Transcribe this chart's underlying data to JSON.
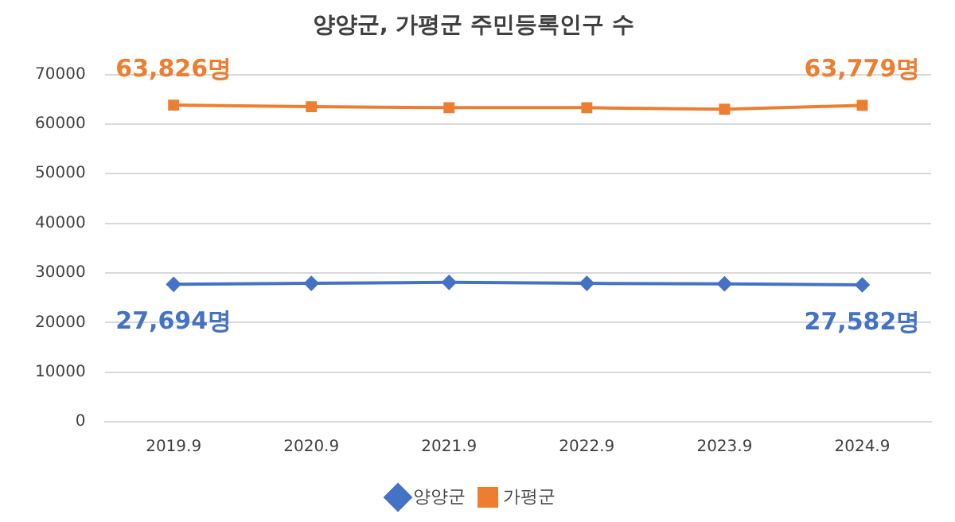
{
  "chart_data": {
    "type": "line",
    "title": "양양군, 가평군 주민등록인구 수",
    "categories": [
      "2019.9",
      "2020.9",
      "2021.9",
      "2022.9",
      "2023.9",
      "2024.9"
    ],
    "series": [
      {
        "name": "양양군",
        "color": "#4472c4",
        "marker": "diamond",
        "values": [
          27694,
          27900,
          28100,
          27900,
          27800,
          27582
        ]
      },
      {
        "name": "가평군",
        "color": "#ed7d31",
        "marker": "square",
        "values": [
          63826,
          63500,
          63300,
          63300,
          63000,
          63779
        ]
      }
    ],
    "ylim": [
      0,
      70000
    ],
    "yticks": [
      0,
      10000,
      20000,
      30000,
      40000,
      50000,
      60000,
      70000
    ],
    "grid": "y",
    "legend": "bottom",
    "line_style": "solid",
    "annotations": [
      {
        "text": "63,826명",
        "x": "2019.9",
        "y": 63826
      },
      {
        "text": "63,779명",
        "x": "2024.9",
        "y": 63779
      },
      {
        "text": "27,694명",
        "x": "2019.9",
        "y": 27694
      },
      {
        "text": "27,582명",
        "x": "2024.9",
        "y": 27582
      }
    ]
  }
}
